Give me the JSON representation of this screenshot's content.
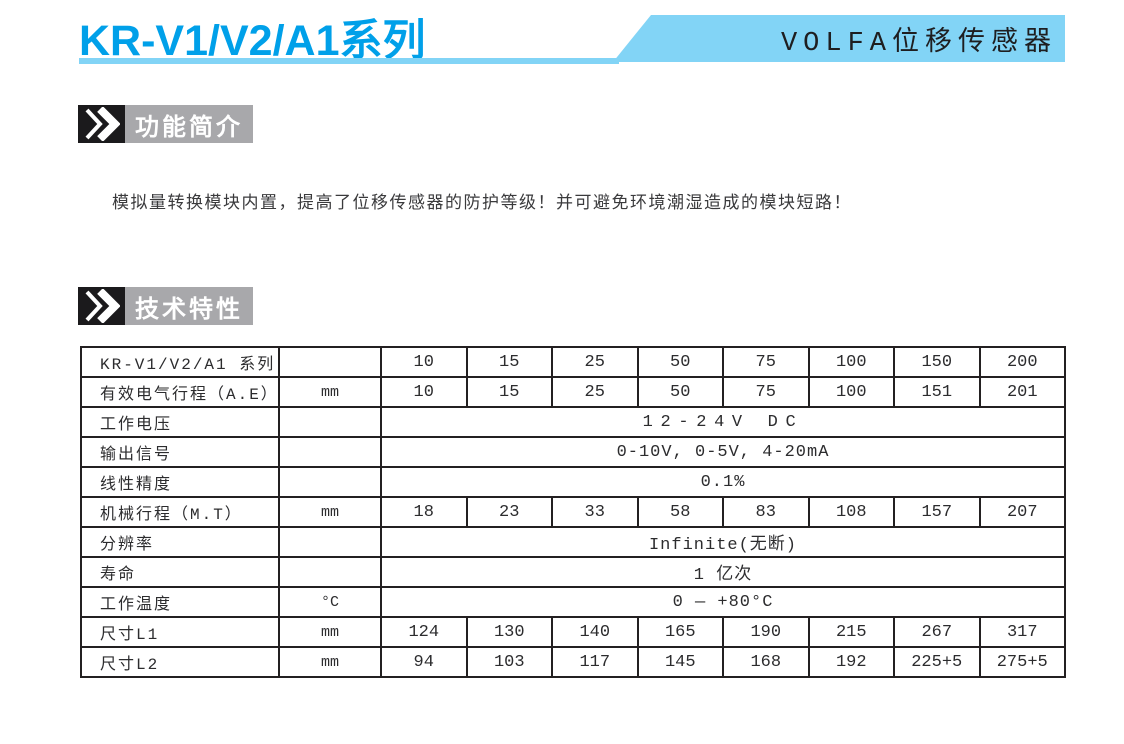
{
  "colors": {
    "accent": "#00a0e9",
    "lightblue": "#82d4f6",
    "badge_black": "#1b1a1c",
    "badge_gray": "#a8a8ab"
  },
  "header": {
    "title": "KR-V1/V2/A1系列",
    "banner": "VOLFA位移传感器"
  },
  "sections": {
    "intro": {
      "badge": "功能简介",
      "body": "模拟量转换模块内置，提高了位移传感器的防护等级！并可避免环境潮湿造成的模块短路！"
    },
    "tech": {
      "badge": "技术特性"
    }
  },
  "table": {
    "rows": [
      {
        "label": "KR-V1/V2/A1 系列",
        "unit": "",
        "values": [
          "10",
          "15",
          "25",
          "50",
          "75",
          "100",
          "150",
          "200"
        ]
      },
      {
        "label": "有效电气行程（A.E）",
        "unit": "mm",
        "values": [
          "10",
          "15",
          "25",
          "50",
          "75",
          "100",
          "151",
          "201"
        ]
      },
      {
        "label": "工作电压",
        "unit": "",
        "span": "12-24V DC"
      },
      {
        "label": "输出信号",
        "unit": "",
        "span": "0-10V, 0-5V, 4-20mA"
      },
      {
        "label": "线性精度",
        "unit": "",
        "span": "0.1%"
      },
      {
        "label": "机械行程（M.T）",
        "unit": "mm",
        "values": [
          "18",
          "23",
          "33",
          "58",
          "83",
          "108",
          "157",
          "207"
        ]
      },
      {
        "label": "分辨率",
        "unit": "",
        "span": "Infinite(无断)"
      },
      {
        "label": "寿命",
        "unit": "",
        "span": "1 亿次"
      },
      {
        "label": "工作温度",
        "unit": "°C",
        "span": "0 — +80°C"
      },
      {
        "label": "尺寸L1",
        "unit": "mm",
        "values": [
          "124",
          "130",
          "140",
          "165",
          "190",
          "215",
          "267",
          "317"
        ]
      },
      {
        "label": "尺寸L2",
        "unit": "mm",
        "values": [
          "94",
          "103",
          "117",
          "145",
          "168",
          "192",
          "225+5",
          "275+5"
        ]
      }
    ]
  }
}
